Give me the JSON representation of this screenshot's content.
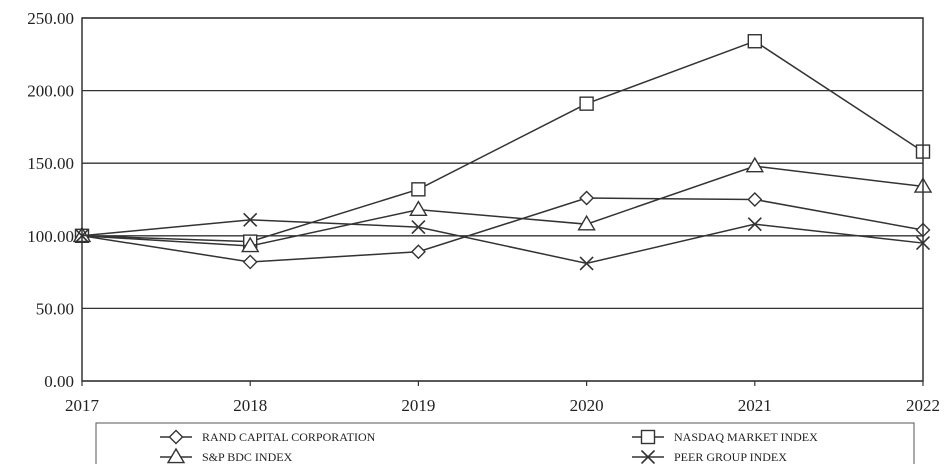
{
  "chart_data": {
    "type": "line",
    "x": [
      "2017",
      "2018",
      "2019",
      "2020",
      "2021",
      "2022"
    ],
    "ylim": [
      0,
      250
    ],
    "yticks": [
      "0.00",
      "50.00",
      "100.00",
      "150.00",
      "200.00",
      "250.00"
    ],
    "grid": "horizontal",
    "legend_placement": "bottom",
    "series": [
      {
        "name": "RAND CAPITAL CORPORATION",
        "marker": "diamond",
        "values": [
          100,
          82,
          89,
          126,
          125,
          104
        ]
      },
      {
        "name": "NASDAQ MARKET INDEX",
        "marker": "square",
        "values": [
          100,
          96,
          132,
          191,
          234,
          158
        ]
      },
      {
        "name": "S&P BDC INDEX",
        "marker": "triangle",
        "values": [
          100,
          93,
          118,
          108,
          148,
          134
        ]
      },
      {
        "name": "PEER GROUP INDEX",
        "marker": "x",
        "values": [
          100,
          111,
          106,
          81,
          108,
          95
        ]
      }
    ],
    "line_color": "#333333"
  }
}
